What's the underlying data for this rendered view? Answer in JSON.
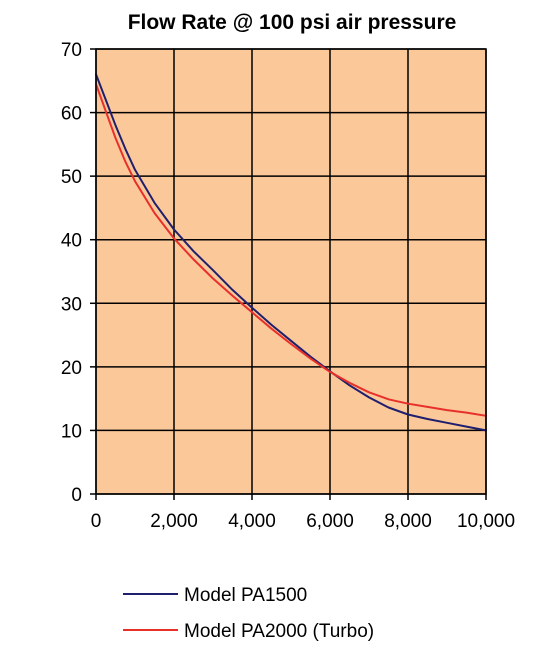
{
  "chart_data": {
    "type": "line",
    "title": "Flow Rate @ 100 psi air pressure",
    "xlabel": "",
    "ylabel": "",
    "xlim": [
      0,
      10000
    ],
    "ylim": [
      0,
      70
    ],
    "x_ticks": [
      0,
      2000,
      4000,
      6000,
      8000,
      10000
    ],
    "x_tick_labels": [
      "0",
      "2,000",
      "4,000",
      "6,000",
      "8,000",
      "10,000"
    ],
    "y_ticks": [
      0,
      10,
      20,
      30,
      40,
      50,
      60,
      70
    ],
    "y_tick_labels": [
      "0",
      "10",
      "20",
      "30",
      "40",
      "50",
      "60",
      "70"
    ],
    "grid": true,
    "plot_background": "#fbc89a",
    "legend_position": "bottom",
    "series": [
      {
        "name": "Model PA1500",
        "color": "#1f1f6e",
        "x": [
          0,
          250,
          500,
          750,
          1000,
          1500,
          2000,
          2500,
          3000,
          3500,
          4000,
          4500,
          5000,
          5500,
          6000,
          6500,
          7000,
          7500,
          8000,
          8500,
          9000,
          9500,
          10000
        ],
        "y": [
          66,
          62,
          58,
          54.3,
          51,
          45.8,
          41.6,
          38.2,
          35.2,
          32.1,
          29.3,
          26.6,
          24.1,
          21.6,
          19.3,
          17.1,
          15.2,
          13.6,
          12.5,
          11.8,
          11.2,
          10.6,
          10.0
        ]
      },
      {
        "name": "Model PA2000 (Turbo)",
        "color": "#e8302a",
        "x": [
          0,
          250,
          500,
          750,
          1000,
          1500,
          2000,
          2500,
          3000,
          3500,
          4000,
          4500,
          5000,
          5500,
          6000,
          6500,
          7000,
          7500,
          8000,
          8500,
          9000,
          9500,
          10000
        ],
        "y": [
          64.5,
          60.2,
          56,
          52.3,
          49.2,
          44.2,
          40.2,
          36.9,
          33.9,
          31.2,
          28.6,
          26.0,
          23.6,
          21.3,
          19.2,
          17.5,
          16.0,
          14.9,
          14.2,
          13.7,
          13.2,
          12.8,
          12.3
        ]
      }
    ]
  }
}
